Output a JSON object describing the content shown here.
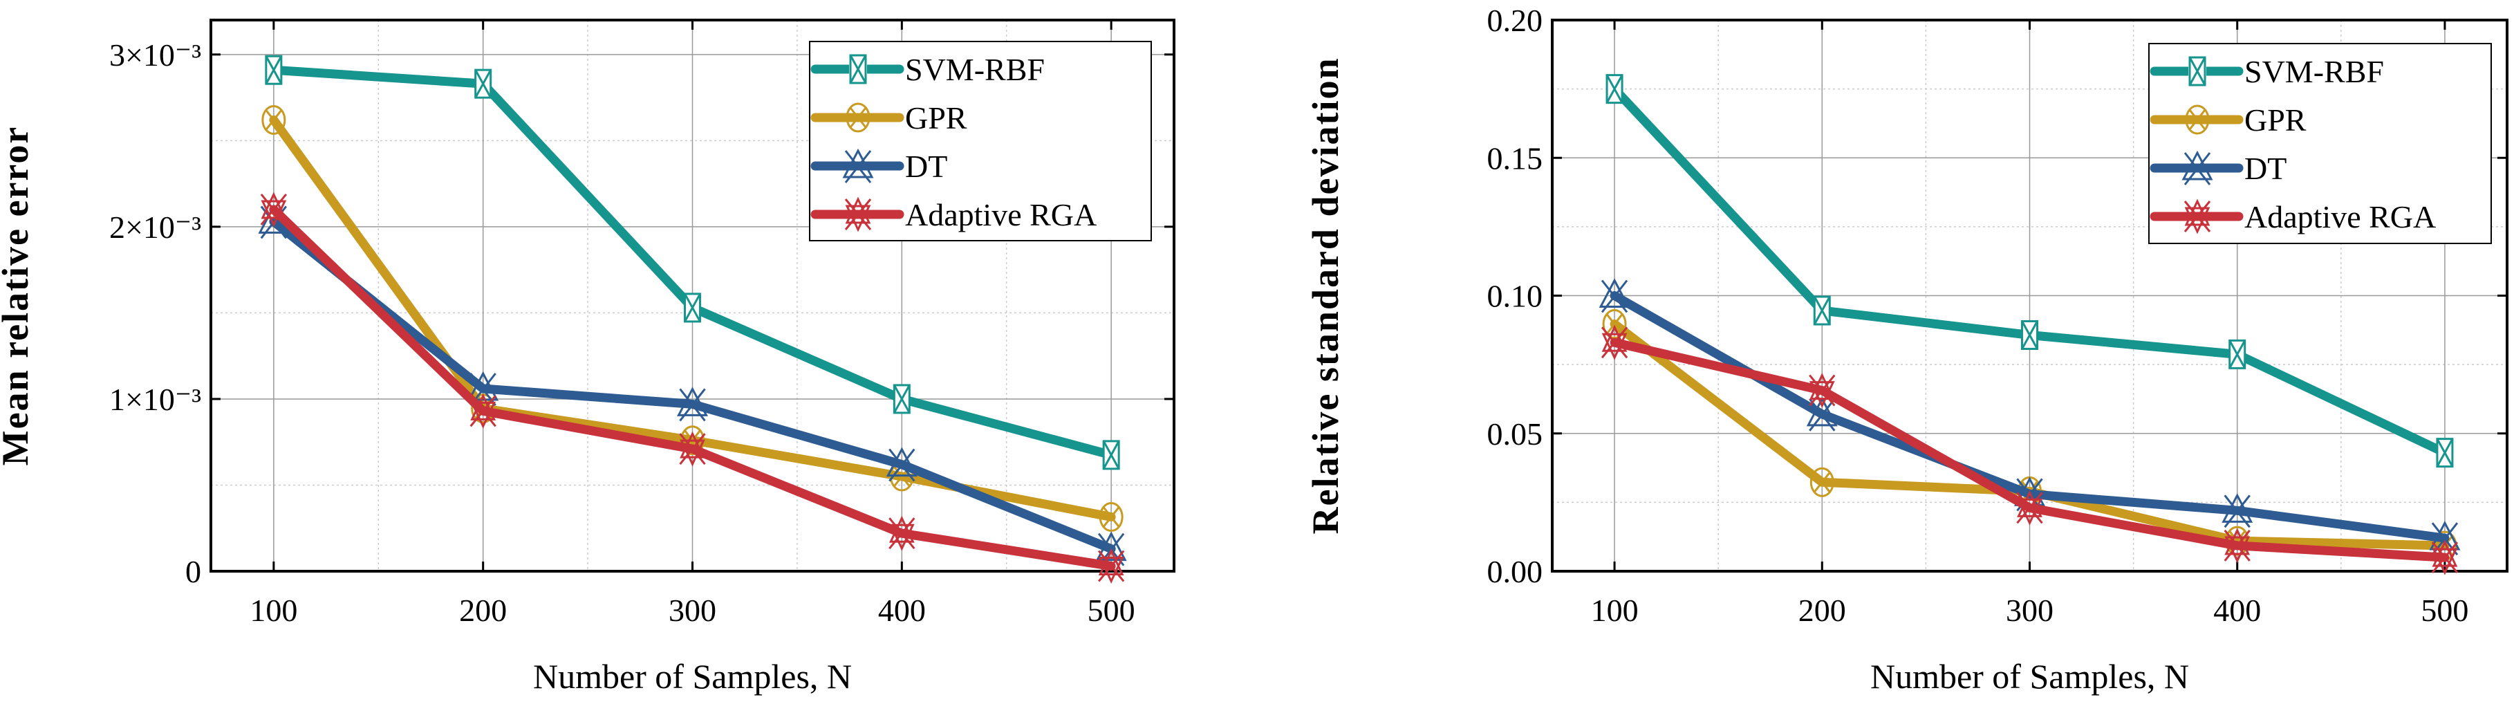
{
  "chart_data": [
    {
      "type": "line",
      "title": "",
      "xlabel": "Number of Samples, N",
      "ylabel": "Mean relative error",
      "x": [
        100,
        200,
        300,
        400,
        500
      ],
      "xlim": [
        70,
        530
      ],
      "ylim": [
        0,
        0.0032
      ],
      "xticks": [
        100,
        200,
        300,
        400,
        500
      ],
      "xtick_labels": [
        "100",
        "200",
        "300",
        "400",
        "500"
      ],
      "yticks": [
        0,
        0.001,
        0.002,
        0.003
      ],
      "ytick_labels": [
        "0",
        "1×10⁻³",
        "2×10⁻³",
        "3×10⁻³"
      ],
      "grid": true,
      "legend_position": "top-right",
      "series": [
        {
          "name": "SVM-RBF",
          "color": "#16948e",
          "marker": "square-x",
          "values": [
            0.00291,
            0.00283,
            0.00153,
            0.001,
            0.000675
          ]
        },
        {
          "name": "GPR",
          "color": "#c99a20",
          "marker": "circle-x",
          "values": [
            0.00262,
            0.000945,
            0.00076,
            0.00055,
            0.000315
          ]
        },
        {
          "name": "DT",
          "color": "#2e5b92",
          "marker": "triangle-x",
          "values": [
            0.00203,
            0.00106,
            0.00097,
            0.00062,
            0.00013
          ]
        },
        {
          "name": "Adaptive RGA",
          "color": "#c8323a",
          "marker": "star",
          "values": [
            0.0021,
            0.00093,
            0.00071,
            0.00022,
            3e-05
          ]
        }
      ]
    },
    {
      "type": "line",
      "title": "",
      "xlabel": "Number of Samples, N",
      "ylabel": "Relative standard deviation",
      "x": [
        100,
        200,
        300,
        400,
        500
      ],
      "xlim": [
        70,
        530
      ],
      "ylim": [
        0,
        0.2
      ],
      "xticks": [
        100,
        200,
        300,
        400,
        500
      ],
      "xtick_labels": [
        "100",
        "200",
        "300",
        "400",
        "500"
      ],
      "yticks": [
        0,
        0.05,
        0.1,
        0.15,
        0.2
      ],
      "ytick_labels": [
        "0.00",
        "0.05",
        "0.10",
        "0.15",
        "0.20"
      ],
      "grid": true,
      "legend_position": "top-right",
      "series": [
        {
          "name": "SVM-RBF",
          "color": "#16948e",
          "marker": "square-x",
          "values": [
            0.175,
            0.0946,
            0.0857,
            0.0787,
            0.043
          ]
        },
        {
          "name": "GPR",
          "color": "#c99a20",
          "marker": "circle-x",
          "values": [
            0.0897,
            0.0323,
            0.029,
            0.011,
            0.0093
          ]
        },
        {
          "name": "DT",
          "color": "#2e5b92",
          "marker": "triangle-x",
          "values": [
            0.1,
            0.057,
            0.028,
            0.022,
            0.012
          ]
        },
        {
          "name": "Adaptive RGA",
          "color": "#c8323a",
          "marker": "star",
          "values": [
            0.083,
            0.0656,
            0.023,
            0.0093,
            0.005
          ]
        }
      ]
    }
  ]
}
